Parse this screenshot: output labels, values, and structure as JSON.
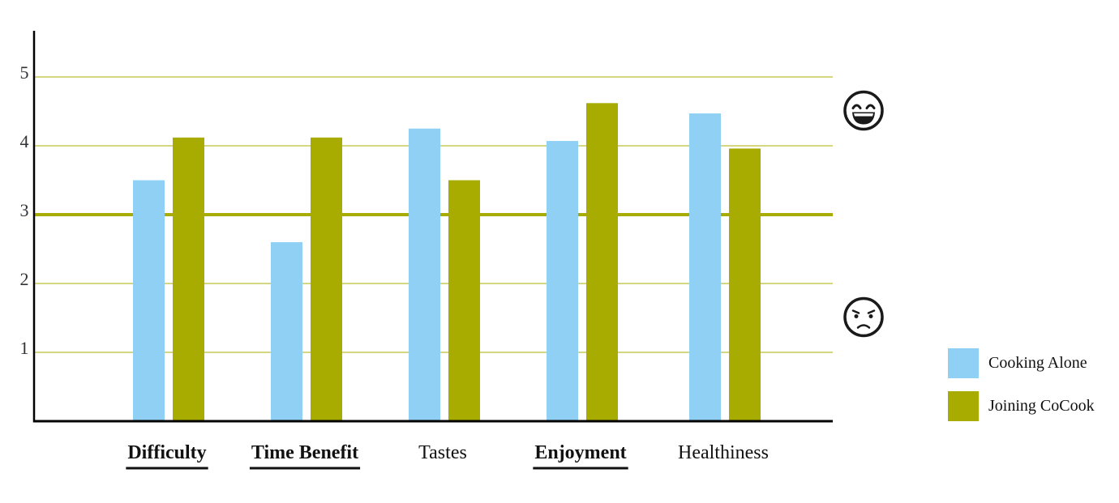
{
  "chart_data": {
    "type": "bar",
    "categories": [
      "Difficulty",
      "Time Benefit",
      "Tastes",
      "Enjoyment",
      "Healthiness"
    ],
    "emphasized_categories": [
      "Difficulty",
      "Time Benefit",
      "Enjoyment"
    ],
    "series": [
      {
        "name": "Cooking Alone",
        "color": "#8fd0f4",
        "values": [
          3.5,
          2.6,
          4.25,
          4.07,
          4.47
        ]
      },
      {
        "name": "Joining CoCook",
        "color": "#a8ac00",
        "values": [
          4.12,
          4.12,
          3.5,
          4.62,
          3.96
        ]
      }
    ],
    "yticks": [
      1,
      2,
      3,
      4,
      5
    ],
    "ylim": [
      0,
      5.1
    ],
    "reference_line": 3,
    "grid": true,
    "grid_color": "#a8ac00",
    "legend_position": "bottom-right",
    "annotations": [
      {
        "icon": "laughing-face-icon",
        "at_value": 4.5
      },
      {
        "icon": "sad-face-icon",
        "at_value": 1.5
      }
    ],
    "title": "",
    "xlabel": "",
    "ylabel": ""
  }
}
